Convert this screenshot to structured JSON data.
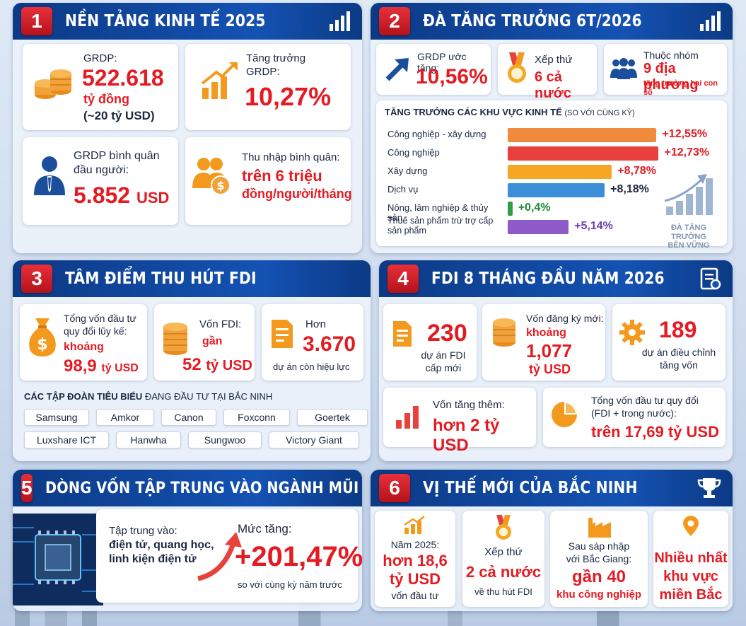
{
  "p1": {
    "num": "1",
    "title": "NỀN TẢNG KINH TẾ 2025",
    "grdp_label": "GRDP:",
    "grdp_value": "522.618",
    "grdp_unit": "tỷ đồng",
    "grdp_usd": "(~20 tỷ USD)",
    "growth_label1": "Tăng trưởng",
    "growth_label2": "GRDP:",
    "growth_value": "10,27%",
    "percap_label1": "GRDP bình quân",
    "percap_label2": "đầu người:",
    "percap_value": "5.852",
    "percap_unit": "USD",
    "income_label": "Thu nhập bình quân:",
    "income_value1": "trên 6 triệu",
    "income_value2": "đồng/người/tháng"
  },
  "p2": {
    "num": "2",
    "title": "ĐÀ TĂNG TRƯỞNG 6T/2026",
    "grdp_label": "GRDP ước tăng:",
    "grdp_value": "10,56%",
    "rank_label": "Xếp thứ",
    "rank_value": "6 cả nước",
    "group_label": "Thuộc nhóm",
    "group_value": "9 địa phương",
    "group_note": "tăng trưởng hai con số",
    "chart_title": "TĂNG TRƯỞNG CÁC KHU VỰC KINH TẾ",
    "chart_subtitle": "(SO VỚI CÙNG KỲ)",
    "side_label1": "ĐÀ TĂNG TRƯỞNG",
    "side_label2": "BỀN VỮNG"
  },
  "chart_data": {
    "type": "bar",
    "title": "TĂNG TRƯỞNG CÁC KHU VỰC KINH TẾ (SO VỚI CÙNG KỲ)",
    "categories": [
      "Công nghiệp - xây dựng",
      "Công nghiệp",
      "Xây dựng",
      "Dịch vụ",
      "Nông, lâm nghiệp & thủy sản",
      "Thuế sản phẩm trừ trợ cấp sản phẩm"
    ],
    "values": [
      12.55,
      12.73,
      8.78,
      8.18,
      0.4,
      5.14
    ],
    "labels": [
      "+12,55%",
      "+12,73%",
      "+8,78%",
      "+8,18%",
      "+0,4%",
      "+5,14%"
    ],
    "colors": [
      "#f08a3c",
      "#e8403a",
      "#f5a623",
      "#3b8fd9",
      "#2e9e45",
      "#8e5bc9"
    ],
    "label_colors": [
      "#e41b23",
      "#e41b23",
      "#e41b23",
      "#1b2740",
      "#1b8a3a",
      "#6b3fb0"
    ],
    "xlim": [
      0,
      13
    ]
  },
  "p3": {
    "num": "3",
    "title": "TÂM ĐIỂM THU HÚT FDI",
    "total_label1": "Tổng vốn đầu tư",
    "total_label2": "quy đổi lũy kế:",
    "total_prefix": "khoảng",
    "total_value": "98,9",
    "total_unit": "tỷ USD",
    "fdi_label": "Vốn FDI:",
    "fdi_prefix": "gần",
    "fdi_value": "52",
    "fdi_unit": "tỷ USD",
    "proj_label": "Hơn",
    "proj_value": "3.670",
    "proj_note": "dự án còn hiệu lực",
    "corp_title_bold": "CÁC TẬP ĐOÀN TIÊU BIỂU",
    "corp_title_rest": "ĐANG ĐẦU TƯ TẠI BẮC NINH",
    "corps_row1": [
      "Samsung",
      "Amkor",
      "Canon",
      "Foxconn",
      "Goertek"
    ],
    "corps_row2": [
      "Luxshare ICT",
      "Hanwha",
      "Sungwoo",
      "Victory Giant"
    ]
  },
  "p4": {
    "num": "4",
    "title": "FDI 8 THÁNG ĐẦU NĂM 2026",
    "new_value": "230",
    "new_note1": "dự án FDI",
    "new_note2": "cấp mới",
    "reg_label": "Vốn đăng ký mới:",
    "reg_prefix": "khoảng",
    "reg_value": "1,077",
    "reg_unit": "tỷ USD",
    "adj_value": "189",
    "adj_note1": "dự án điều chỉnh",
    "adj_note2": "tăng vốn",
    "add_label": "Vốn tăng thêm:",
    "add_value": "hơn 2 tỷ USD",
    "sum_label1": "Tổng vốn đầu tư quy đổi",
    "sum_label2": "(FDI + trong nước):",
    "sum_value": "trên 17,69 tỷ USD"
  },
  "p5": {
    "num": "5",
    "title": "DÒNG VỐN TẬP TRUNG VÀO NGÀNH MŨI NHỌN",
    "focus_label": "Tập trung vào:",
    "focus_1": "điện tử, quang học,",
    "focus_2": "linh kiện điện tử",
    "rise_label": "Mức tăng:",
    "rise_value": "+201,47%",
    "rise_note": "so với cùng kỳ năm trước"
  },
  "p6": {
    "num": "6",
    "title": "VỊ THẾ MỚI CỦA BẮC NINH",
    "c1_label": "Năm 2025:",
    "c1_value1": "hơn 18,6",
    "c1_value2": "tỷ USD",
    "c1_note": "vốn đầu tư",
    "c2_label": "Xếp thứ",
    "c2_value": "2 cả nước",
    "c2_note": "về thu hút FDI",
    "c3_label1": "Sau sáp nhập",
    "c3_label2": "với Bắc Giang:",
    "c3_value": "gần 40",
    "c3_note": "khu công nghiệp",
    "c4_value1": "Nhiều nhất",
    "c4_value2": "khu vực",
    "c4_value3": "miền Bắc"
  },
  "colors": {
    "header_blue": "#1452b3",
    "accent_red": "#e41b23",
    "accent_orange": "#f39a1e"
  }
}
